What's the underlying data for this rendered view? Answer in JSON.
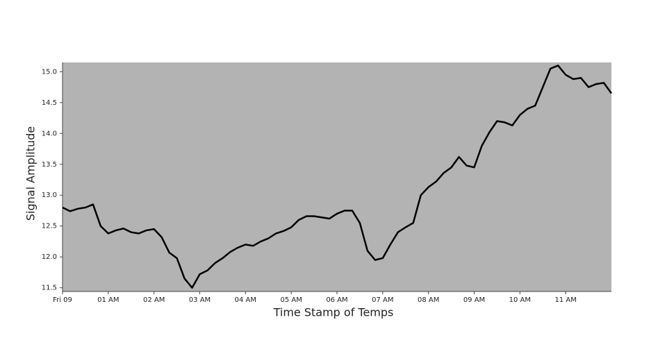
{
  "chart_data": {
    "type": "line",
    "xlabel": "Time Stamp of Temps",
    "ylabel": "Signal Amplitude",
    "x": [
      "00:00",
      "00:10",
      "00:20",
      "00:30",
      "00:40",
      "00:50",
      "01:00",
      "01:10",
      "01:20",
      "01:30",
      "01:40",
      "01:50",
      "02:00",
      "02:10",
      "02:20",
      "02:30",
      "02:40",
      "02:50",
      "03:00",
      "03:10",
      "03:20",
      "03:30",
      "03:40",
      "03:50",
      "04:00",
      "04:10",
      "04:20",
      "04:30",
      "04:40",
      "04:50",
      "05:00",
      "05:10",
      "05:20",
      "05:30",
      "05:40",
      "05:50",
      "06:00",
      "06:10",
      "06:20",
      "06:30",
      "06:40",
      "06:50",
      "07:00",
      "07:10",
      "07:20",
      "07:30",
      "07:40",
      "07:50",
      "08:00",
      "08:10",
      "08:20",
      "08:30",
      "08:40",
      "08:50",
      "09:00",
      "09:10",
      "09:20",
      "09:30",
      "09:40",
      "09:50",
      "10:00",
      "10:10",
      "10:20",
      "10:30",
      "10:40",
      "10:50",
      "11:00",
      "11:10",
      "11:20",
      "11:30",
      "11:40",
      "11:50",
      "12:00"
    ],
    "series": [
      {
        "color": "#000000",
        "values": [
          12.8,
          12.74,
          12.78,
          12.8,
          12.85,
          12.5,
          12.38,
          12.43,
          12.46,
          12.4,
          12.38,
          12.43,
          12.45,
          12.32,
          12.07,
          11.98,
          11.65,
          11.5,
          11.72,
          11.78,
          11.9,
          11.98,
          12.08,
          12.15,
          12.2,
          12.18,
          12.25,
          12.3,
          12.38,
          12.42,
          12.48,
          12.6,
          12.66,
          12.66,
          12.64,
          12.62,
          12.7,
          12.75,
          12.75,
          12.55,
          12.1,
          11.95,
          11.98,
          12.2,
          12.4,
          12.48,
          12.55,
          13.0,
          13.13,
          13.22,
          13.36,
          13.45,
          13.62,
          13.48,
          13.45,
          13.8,
          14.02,
          14.2,
          14.18,
          14.13,
          14.3,
          14.4,
          14.45,
          14.75,
          15.05,
          15.1,
          14.95,
          14.88,
          14.9,
          14.75,
          14.8,
          14.82,
          14.65
        ]
      }
    ],
    "xlim": [
      "00:00",
      "12:00"
    ],
    "xticks": [
      {
        "value": "00:00",
        "label": "Fri 09"
      },
      {
        "value": "01:00",
        "label": "01 AM"
      },
      {
        "value": "02:00",
        "label": "02 AM"
      },
      {
        "value": "03:00",
        "label": "03 AM"
      },
      {
        "value": "04:00",
        "label": "04 AM"
      },
      {
        "value": "05:00",
        "label": "05 AM"
      },
      {
        "value": "06:00",
        "label": "06 AM"
      },
      {
        "value": "07:00",
        "label": "07 AM"
      },
      {
        "value": "08:00",
        "label": "08 AM"
      },
      {
        "value": "09:00",
        "label": "09 AM"
      },
      {
        "value": "10:00",
        "label": "10 AM"
      },
      {
        "value": "11:00",
        "label": "11 AM"
      }
    ],
    "ylim": [
      11.44,
      15.15
    ],
    "yticks": [
      11.5,
      {
        "value": 12,
        "label": "12.0"
      },
      12.5,
      {
        "value": 13,
        "label": "13.0"
      },
      13.5,
      {
        "value": 14,
        "label": "14.0"
      },
      14.5,
      {
        "value": 15,
        "label": "15.0"
      }
    ],
    "grid": false,
    "background": "#b3b3b3"
  }
}
